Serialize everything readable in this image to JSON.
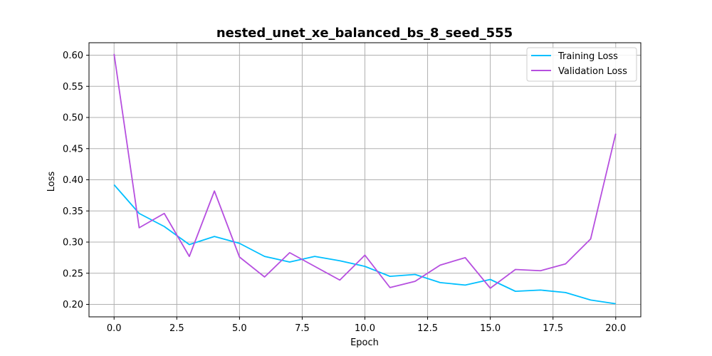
{
  "chart_data": {
    "type": "line",
    "title": "nested_unet_xe_balanced_bs_8_seed_555",
    "xlabel": "Epoch",
    "ylabel": "Loss",
    "xlim": [
      -1.0,
      21.0
    ],
    "ylim": [
      0.18,
      0.62
    ],
    "x_ticks": [
      0.0,
      2.5,
      5.0,
      7.5,
      10.0,
      12.5,
      15.0,
      17.5,
      20.0
    ],
    "x_tick_labels": [
      "0.0",
      "2.5",
      "5.0",
      "7.5",
      "10.0",
      "12.5",
      "15.0",
      "17.5",
      "20.0"
    ],
    "y_ticks": [
      0.2,
      0.25,
      0.3,
      0.35,
      0.4,
      0.45,
      0.5,
      0.55,
      0.6
    ],
    "y_tick_labels": [
      "0.20",
      "0.25",
      "0.30",
      "0.35",
      "0.40",
      "0.45",
      "0.50",
      "0.55",
      "0.60"
    ],
    "grid": true,
    "legend_position": "top-right",
    "x": [
      0,
      1,
      2,
      3,
      4,
      5,
      6,
      7,
      8,
      9,
      10,
      11,
      12,
      13,
      14,
      15,
      16,
      17,
      18,
      19,
      20
    ],
    "series": [
      {
        "name": "Training Loss",
        "color": "#00bfff",
        "values": [
          0.392,
          0.346,
          0.325,
          0.296,
          0.309,
          0.298,
          0.277,
          0.268,
          0.277,
          0.27,
          0.261,
          0.245,
          0.248,
          0.235,
          0.231,
          0.24,
          0.221,
          0.223,
          0.219,
          0.207,
          0.201
        ]
      },
      {
        "name": "Validation Loss",
        "color": "#b64fdf",
        "values": [
          0.602,
          0.323,
          0.346,
          0.277,
          0.382,
          0.276,
          0.244,
          0.283,
          0.261,
          0.239,
          0.279,
          0.227,
          0.237,
          0.263,
          0.275,
          0.226,
          0.256,
          0.254,
          0.265,
          0.305,
          0.474
        ]
      }
    ]
  }
}
